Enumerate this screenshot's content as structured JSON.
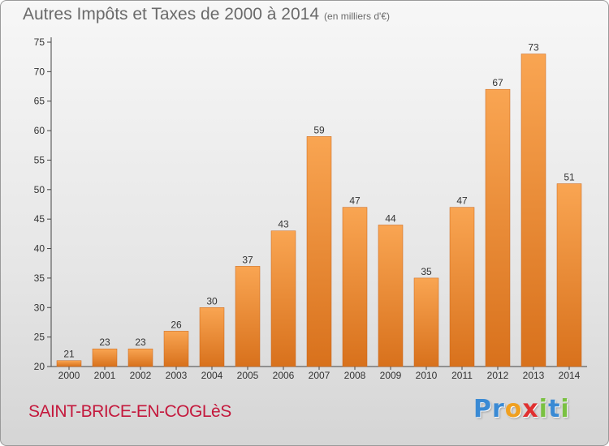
{
  "chart_data": {
    "type": "bar",
    "title": "Autres Impôts et Taxes de 2000 à 2014",
    "unit": "(en milliers d'€)",
    "categories": [
      "2000",
      "2001",
      "2002",
      "2003",
      "2004",
      "2005",
      "2006",
      "2007",
      "2008",
      "2009",
      "2010",
      "2011",
      "2012",
      "2013",
      "2014"
    ],
    "values": [
      21,
      23,
      23,
      26,
      30,
      37,
      43,
      59,
      47,
      44,
      35,
      47,
      67,
      73,
      51
    ],
    "ylim": [
      20,
      75
    ],
    "yticks": [
      20,
      25,
      30,
      35,
      40,
      45,
      50,
      55,
      60,
      65,
      70,
      75
    ],
    "grid": false,
    "colors": {
      "bar_light": "#f9a552",
      "bar_dark": "#d8711c"
    }
  },
  "footer": {
    "commune": "SAINT-BRICE-EN-COGLèS",
    "logo_letters": [
      {
        "char": "P",
        "color": "#3a8ad4"
      },
      {
        "char": "r",
        "color": "#3a8ad4"
      },
      {
        "char": "o",
        "color": "#f0a020"
      },
      {
        "char": "x",
        "color": "#e03030"
      },
      {
        "char": "i",
        "color": "#7ac142"
      },
      {
        "char": "t",
        "color": "#3a8ad4"
      },
      {
        "char": "i",
        "color": "#7ac142"
      }
    ]
  }
}
